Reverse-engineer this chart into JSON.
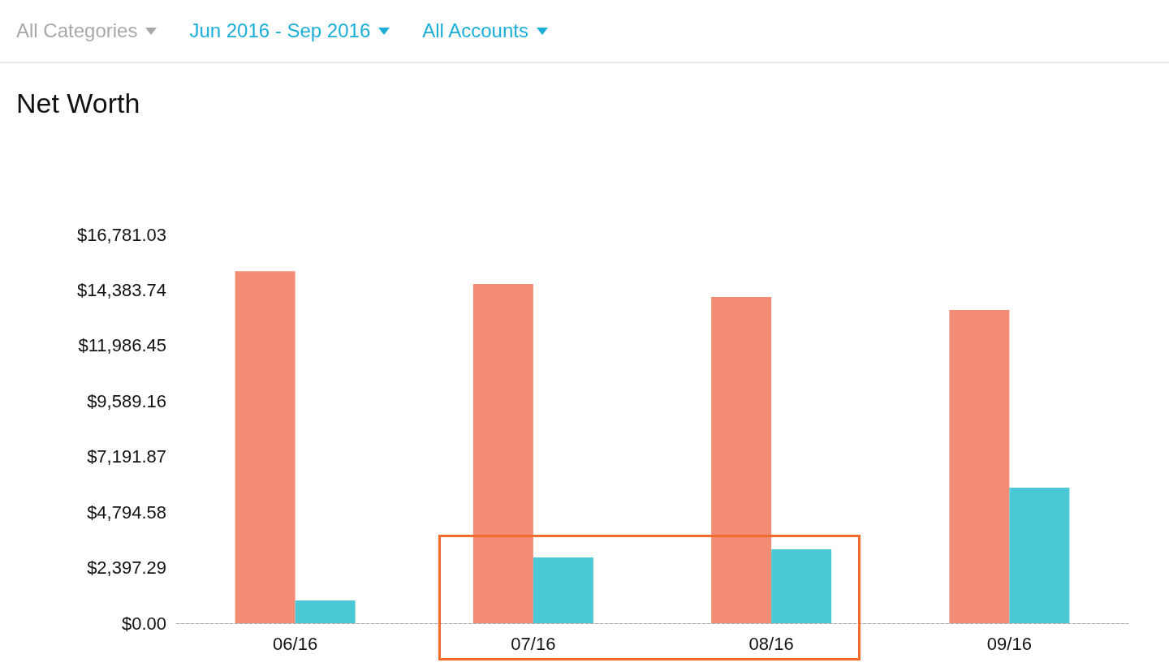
{
  "chart_data": {
    "type": "bar",
    "title": "Net Worth",
    "annotations": [
      "All Categories",
      "Jun 2016 - Sep 2016",
      "All Accounts"
    ],
    "categories": [
      "06/16",
      "07/16",
      "08/16",
      "09/16"
    ],
    "series": [
      {
        "color": "#f38c74",
        "values": [
          15200,
          14640,
          14080,
          13520
        ]
      },
      {
        "color": "#4bc8d5",
        "values": [
          980,
          2840,
          3190,
          5850
        ]
      }
    ],
    "ylim": [
      0,
      16781.03
    ],
    "yticks": [
      {
        "value": 0,
        "label": "$0.00"
      },
      {
        "value": 2397.29,
        "label": "$2,397.29"
      },
      {
        "value": 4794.58,
        "label": "$4,794.58"
      },
      {
        "value": 7191.87,
        "label": "$7,191.87"
      },
      {
        "value": 9589.16,
        "label": "$9,589.16"
      },
      {
        "value": 11986.45,
        "label": "$11,986.45"
      },
      {
        "value": 14383.74,
        "label": "$14,383.74"
      },
      {
        "value": 16781.03,
        "label": "$16,781.03"
      }
    ],
    "grid": false
  }
}
